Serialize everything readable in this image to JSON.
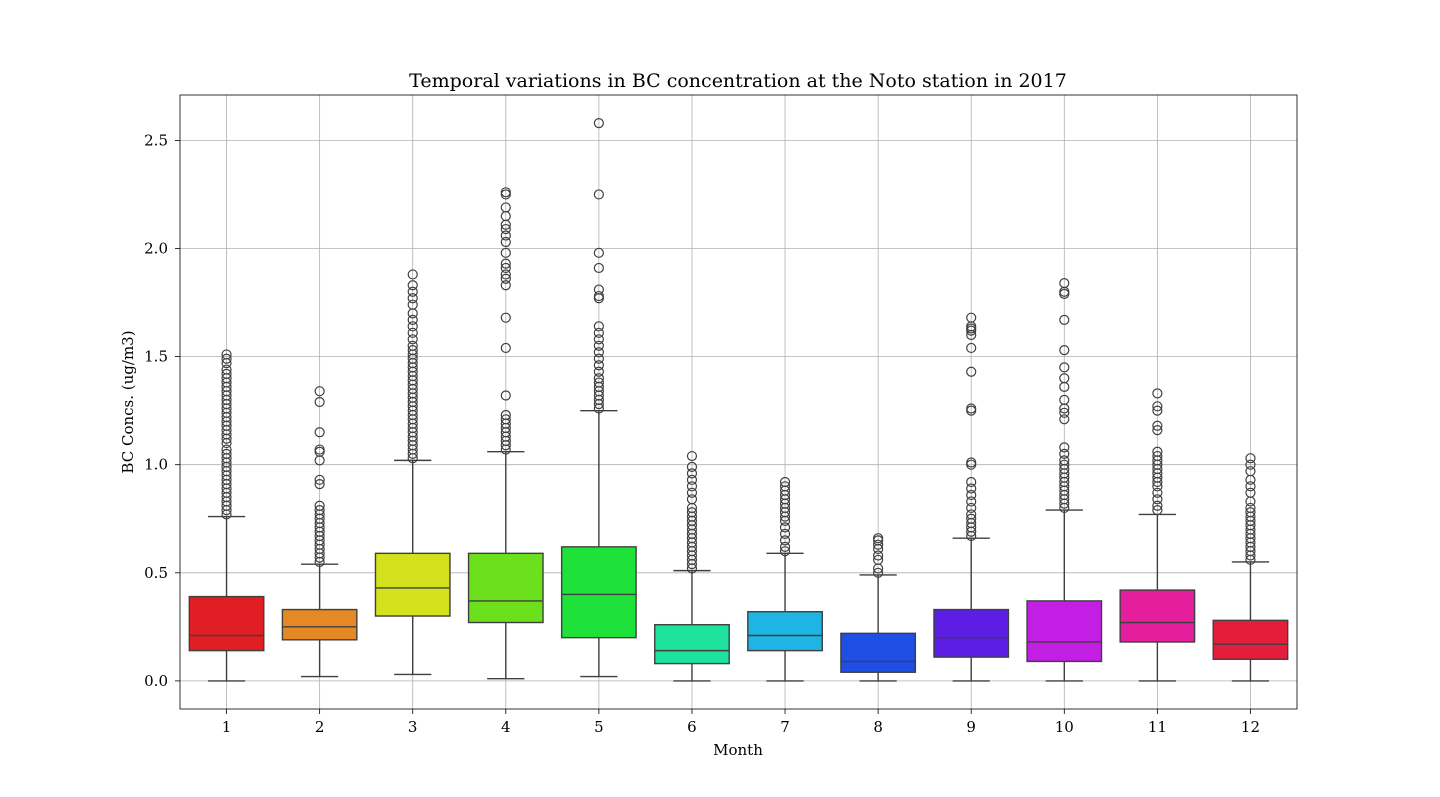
{
  "chart_data": {
    "type": "box",
    "title": "Temporal variations in BC concentration at the Noto station in 2017",
    "xlabel": "Month",
    "ylabel": "BC Concs. (ug/m3)",
    "ylim": [
      -0.13,
      2.71
    ],
    "yticks": [
      "0.0",
      "0.5",
      "1.0",
      "1.5",
      "2.0",
      "2.5"
    ],
    "ytick_values": [
      0.0,
      0.5,
      1.0,
      1.5,
      2.0,
      2.5
    ],
    "grid": true,
    "categories": [
      "1",
      "2",
      "3",
      "4",
      "5",
      "6",
      "7",
      "8",
      "9",
      "10",
      "11",
      "12"
    ],
    "boxes": [
      {
        "month": "1",
        "color": "#e01e23",
        "whislo": 0.0,
        "q1": 0.14,
        "med": 0.21,
        "q3": 0.39,
        "whishi": 0.76,
        "fliers": [
          0.77,
          0.79,
          0.81,
          0.83,
          0.85,
          0.87,
          0.89,
          0.91,
          0.93,
          0.95,
          0.97,
          0.99,
          1.01,
          1.03,
          1.05,
          1.07,
          1.1,
          1.12,
          1.14,
          1.16,
          1.18,
          1.2,
          1.22,
          1.24,
          1.26,
          1.28,
          1.3,
          1.32,
          1.34,
          1.36,
          1.38,
          1.4,
          1.42,
          1.44,
          1.47,
          1.49,
          1.51
        ]
      },
      {
        "month": "2",
        "color": "#e48923",
        "whislo": 0.02,
        "q1": 0.19,
        "med": 0.25,
        "q3": 0.33,
        "whishi": 0.54,
        "fliers": [
          0.55,
          0.57,
          0.59,
          0.61,
          0.63,
          0.65,
          0.67,
          0.69,
          0.71,
          0.73,
          0.75,
          0.77,
          0.79,
          0.81,
          0.91,
          0.93,
          1.02,
          1.06,
          1.07,
          1.15,
          1.29,
          1.34
        ]
      },
      {
        "month": "3",
        "color": "#d4e21d",
        "whislo": 0.03,
        "q1": 0.3,
        "med": 0.43,
        "q3": 0.59,
        "whishi": 1.02,
        "fliers": [
          1.03,
          1.05,
          1.07,
          1.09,
          1.11,
          1.13,
          1.15,
          1.17,
          1.19,
          1.21,
          1.23,
          1.25,
          1.27,
          1.29,
          1.31,
          1.33,
          1.35,
          1.37,
          1.39,
          1.41,
          1.43,
          1.45,
          1.47,
          1.49,
          1.51,
          1.53,
          1.55,
          1.58,
          1.61,
          1.64,
          1.67,
          1.7,
          1.74,
          1.77,
          1.8,
          1.83,
          1.88
        ]
      },
      {
        "month": "4",
        "color": "#6de01d",
        "whislo": 0.01,
        "q1": 0.27,
        "med": 0.37,
        "q3": 0.59,
        "whishi": 1.06,
        "fliers": [
          1.07,
          1.09,
          1.11,
          1.13,
          1.15,
          1.17,
          1.19,
          1.21,
          1.23,
          1.32,
          1.54,
          1.68,
          1.83,
          1.86,
          1.88,
          1.91,
          1.93,
          1.98,
          2.03,
          2.06,
          2.09,
          2.11,
          2.15,
          2.19,
          2.25,
          2.26
        ]
      },
      {
        "month": "5",
        "color": "#1ee23a",
        "whislo": 0.02,
        "q1": 0.2,
        "med": 0.4,
        "q3": 0.62,
        "whishi": 1.25,
        "fliers": [
          1.26,
          1.28,
          1.3,
          1.32,
          1.34,
          1.36,
          1.38,
          1.4,
          1.43,
          1.46,
          1.49,
          1.52,
          1.55,
          1.58,
          1.61,
          1.64,
          1.77,
          1.78,
          1.81,
          1.91,
          1.98,
          2.25,
          2.58
        ]
      },
      {
        "month": "6",
        "color": "#1ee29d",
        "whislo": 0.0,
        "q1": 0.08,
        "med": 0.14,
        "q3": 0.26,
        "whishi": 0.51,
        "fliers": [
          0.52,
          0.54,
          0.56,
          0.58,
          0.6,
          0.62,
          0.64,
          0.66,
          0.68,
          0.7,
          0.72,
          0.74,
          0.76,
          0.78,
          0.8,
          0.84,
          0.87,
          0.9,
          0.93,
          0.96,
          0.99,
          1.04
        ]
      },
      {
        "month": "7",
        "color": "#1eb5e4",
        "whislo": 0.0,
        "q1": 0.14,
        "med": 0.21,
        "q3": 0.32,
        "whishi": 0.59,
        "fliers": [
          0.6,
          0.62,
          0.65,
          0.68,
          0.71,
          0.74,
          0.76,
          0.78,
          0.8,
          0.82,
          0.84,
          0.86,
          0.88,
          0.9,
          0.92
        ]
      },
      {
        "month": "8",
        "color": "#1e4ee4",
        "whislo": 0.0,
        "q1": 0.04,
        "med": 0.09,
        "q3": 0.22,
        "whishi": 0.49,
        "fliers": [
          0.5,
          0.52,
          0.56,
          0.58,
          0.61,
          0.63,
          0.65,
          0.66
        ]
      },
      {
        "month": "9",
        "color": "#5c1ee4",
        "whislo": 0.0,
        "q1": 0.11,
        "med": 0.2,
        "q3": 0.33,
        "whishi": 0.66,
        "fliers": [
          0.67,
          0.69,
          0.71,
          0.73,
          0.75,
          0.77,
          0.8,
          0.83,
          0.86,
          0.89,
          0.92,
          1.0,
          1.01,
          1.25,
          1.26,
          1.43,
          1.54,
          1.6,
          1.62,
          1.63,
          1.64,
          1.68
        ]
      },
      {
        "month": "10",
        "color": "#c31ee4",
        "whislo": 0.0,
        "q1": 0.09,
        "med": 0.18,
        "q3": 0.37,
        "whishi": 0.79,
        "fliers": [
          0.8,
          0.82,
          0.84,
          0.86,
          0.88,
          0.9,
          0.92,
          0.94,
          0.96,
          0.98,
          1.0,
          1.02,
          1.05,
          1.08,
          1.21,
          1.24,
          1.26,
          1.3,
          1.36,
          1.4,
          1.45,
          1.53,
          1.67,
          1.79,
          1.8,
          1.84
        ]
      },
      {
        "month": "11",
        "color": "#e41e9d",
        "whislo": 0.0,
        "q1": 0.18,
        "med": 0.27,
        "q3": 0.42,
        "whishi": 0.77,
        "fliers": [
          0.79,
          0.81,
          0.84,
          0.87,
          0.9,
          0.92,
          0.94,
          0.96,
          0.98,
          1.0,
          1.02,
          1.04,
          1.06,
          1.16,
          1.18,
          1.25,
          1.27,
          1.33
        ]
      },
      {
        "month": "12",
        "color": "#e41e3a",
        "whislo": 0.0,
        "q1": 0.1,
        "med": 0.17,
        "q3": 0.28,
        "whishi": 0.55,
        "fliers": [
          0.56,
          0.58,
          0.6,
          0.62,
          0.64,
          0.66,
          0.68,
          0.7,
          0.72,
          0.74,
          0.76,
          0.78,
          0.8,
          0.83,
          0.87,
          0.9,
          0.93,
          0.97,
          1.0,
          1.03
        ]
      }
    ]
  }
}
